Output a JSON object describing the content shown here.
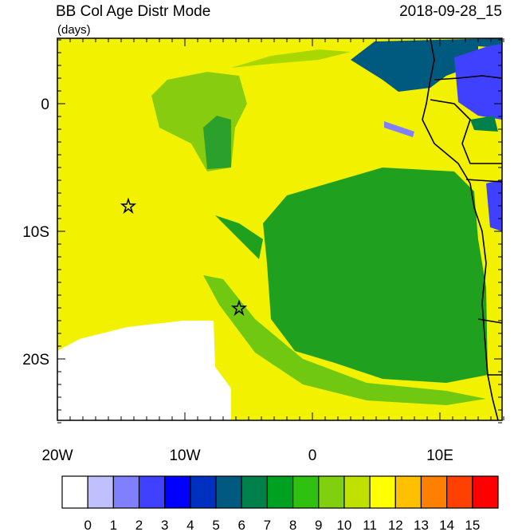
{
  "header": {
    "title": "BB Col Age Distr Mode",
    "units": "(days)",
    "date": "2018-09-28_15"
  },
  "axes": {
    "x_labels": [
      "20W",
      "10W",
      "0",
      "10E"
    ],
    "y_labels": [
      "0",
      "10S",
      "20S"
    ]
  },
  "colorbar": {
    "levels": [
      0,
      1,
      2,
      3,
      4,
      5,
      6,
      7,
      8,
      9,
      10,
      11,
      12,
      13,
      14,
      15
    ],
    "colors": [
      "#ffffff",
      "#c0c0ff",
      "#8080ff",
      "#4040ff",
      "#0000ff",
      "#0030c0",
      "#005a80",
      "#00804a",
      "#00a020",
      "#30c010",
      "#80d010",
      "#c0e000",
      "#ffff00",
      "#ffc000",
      "#ff8000",
      "#ff4000",
      "#ff0000"
    ]
  }
}
